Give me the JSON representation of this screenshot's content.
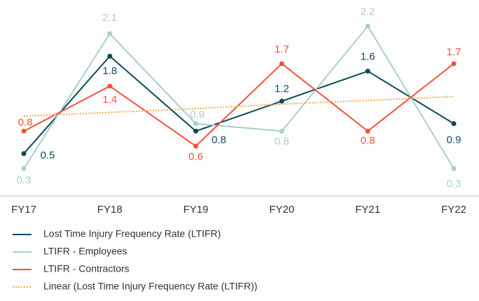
{
  "chart_data": {
    "type": "line",
    "categories": [
      "FY17",
      "FY18",
      "FY19",
      "FY20",
      "FY21",
      "FY22"
    ],
    "series": [
      {
        "name": "Lost Time Injury Frequency Rate (LTIFR)",
        "color": "#0e4a5a",
        "values": [
          0.5,
          1.8,
          0.8,
          1.2,
          1.6,
          0.9
        ],
        "data_labels": true
      },
      {
        "name": "LTIFR - Employees",
        "color": "#a9cfcb",
        "values": [
          0.3,
          2.1,
          0.9,
          0.8,
          2.2,
          0.3
        ],
        "data_labels": true
      },
      {
        "name": "LTIFR - Contractors",
        "color": "#f0533a",
        "values": [
          0.8,
          1.4,
          0.6,
          1.7,
          0.8,
          1.7
        ],
        "data_labels": true
      },
      {
        "name": "Linear (Lost Time Injury Frequency Rate (LTIFR))",
        "color": "#f5a84a",
        "values": [
          1.0,
          1.05,
          1.1,
          1.16,
          1.21,
          1.26
        ],
        "dotted": true,
        "data_labels": false
      }
    ],
    "ylim": [
      0,
      2.4
    ],
    "legend": "bottom"
  }
}
